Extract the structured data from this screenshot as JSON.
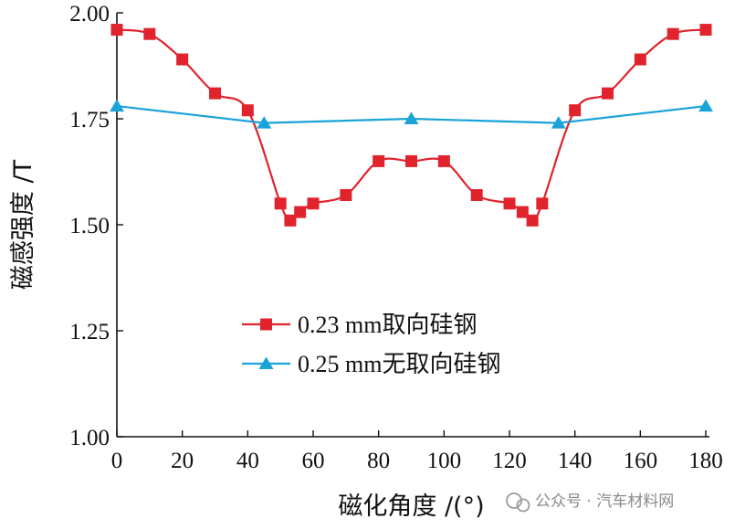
{
  "chart_data": {
    "type": "line",
    "title": "",
    "xlabel": "磁化角度 /(°)",
    "ylabel": "磁感强度 /T",
    "xlim": [
      0,
      180
    ],
    "ylim": [
      1.0,
      2.0
    ],
    "x_ticks": [
      "0",
      "20",
      "40",
      "60",
      "80",
      "100",
      "120",
      "140",
      "160",
      "180"
    ],
    "y_ticks": [
      "1.00",
      "1.25",
      "1.50",
      "1.75",
      "2.00"
    ],
    "grid": false,
    "legend_position": "center-left",
    "series": [
      {
        "name": "0.23 mm取向硅钢",
        "color": "#e0232d",
        "marker": "square",
        "x": [
          0,
          10,
          20,
          30,
          40,
          50,
          53,
          56,
          60,
          70,
          80,
          90,
          100,
          110,
          120,
          124,
          127,
          130,
          140,
          150,
          160,
          170,
          180
        ],
        "y": [
          1.96,
          1.95,
          1.89,
          1.81,
          1.77,
          1.55,
          1.51,
          1.53,
          1.55,
          1.57,
          1.65,
          1.65,
          1.65,
          1.57,
          1.55,
          1.53,
          1.51,
          1.55,
          1.77,
          1.81,
          1.89,
          1.95,
          1.96
        ]
      },
      {
        "name": "0.25 mm无取向硅钢",
        "color": "#1aa3d9",
        "marker": "triangle",
        "x": [
          0,
          45,
          90,
          135,
          180
        ],
        "y": [
          1.78,
          1.74,
          1.75,
          1.74,
          1.78
        ]
      }
    ]
  },
  "watermark": {
    "text": "公众号 · 汽车材料网",
    "icon": "wechat-icon"
  }
}
